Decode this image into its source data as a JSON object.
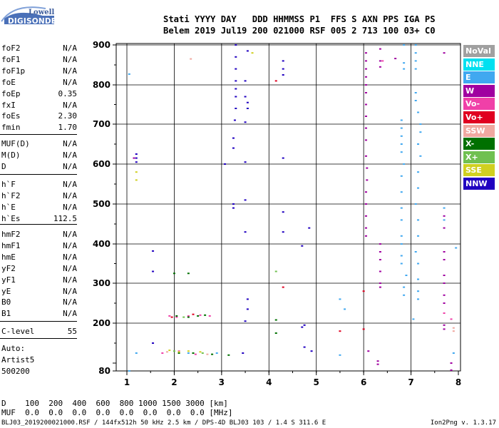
{
  "logo": {
    "line1": "Lowell",
    "line2": "DIGISONDE"
  },
  "header": {
    "row1": "Stati YYYY DAY   DDD HHMMSS P1  FFS S AXN PPS IGA PS",
    "row2": "Belem 2019 Jul19 200 021000 RSF 005 2 713 100 03+ C0"
  },
  "params": {
    "group1": [
      {
        "name": "foF2",
        "value": "N/A"
      },
      {
        "name": "foF1",
        "value": "N/A"
      },
      {
        "name": "foF1p",
        "value": "N/A"
      },
      {
        "name": "foE",
        "value": "N/A"
      },
      {
        "name": "foEp",
        "value": "0.35"
      },
      {
        "name": "fxI",
        "value": "N/A"
      },
      {
        "name": "foEs",
        "value": "2.30"
      },
      {
        "name": "fmin",
        "value": "1.70"
      }
    ],
    "group2": [
      {
        "name": "MUF(D)",
        "value": "N/A"
      },
      {
        "name": "M(D)",
        "value": "N/A"
      },
      {
        "name": "D",
        "value": "N/A"
      }
    ],
    "group3": [
      {
        "name": "h`F",
        "value": "N/A"
      },
      {
        "name": "h`F2",
        "value": "N/A"
      },
      {
        "name": "h`E",
        "value": "N/A"
      },
      {
        "name": "h`Es",
        "value": "112.5"
      }
    ],
    "group4": [
      {
        "name": "hmF2",
        "value": "N/A"
      },
      {
        "name": "hmF1",
        "value": "N/A"
      },
      {
        "name": "hmE",
        "value": "N/A"
      },
      {
        "name": "yF2",
        "value": "N/A"
      },
      {
        "name": "yF1",
        "value": "N/A"
      },
      {
        "name": "yE",
        "value": "N/A"
      },
      {
        "name": "B0",
        "value": "N/A"
      },
      {
        "name": "B1",
        "value": "N/A"
      }
    ],
    "clevel": {
      "name": "C-level",
      "value": "55"
    },
    "auto": [
      "Auto:",
      "Artist5",
      "500200"
    ]
  },
  "legend": [
    {
      "label": "NoVal",
      "color": "#a0a0a0"
    },
    {
      "label": "NNE",
      "color": "#00e0f0"
    },
    {
      "label": "E",
      "color": "#40a8f0"
    },
    {
      "label": "W",
      "color": "#a000a0"
    },
    {
      "label": "Vo-",
      "color": "#f040a8"
    },
    {
      "label": "Vo+",
      "color": "#e00020"
    },
    {
      "label": "SSW",
      "color": "#f0a8a0"
    },
    {
      "label": "X-",
      "color": "#007000"
    },
    {
      "label": "X+",
      "color": "#70c050"
    },
    {
      "label": "SSE",
      "color": "#d0d020"
    },
    {
      "label": "NNW",
      "color": "#2000c0"
    }
  ],
  "bottom": {
    "d_row": "D    100  200  400  600  800 1000 1500 3000 [km]",
    "muf_row": "MUF  0.0  0.0  0.0  0.0  0.0  0.0  0.0  0.0 [MHz]"
  },
  "footer": {
    "left": "BLJ03_2019200021000.RSF / 144fx512h 50 kHz 2.5 km / DPS-4D BLJ03 103 / 1.4 S 311.6 E",
    "right": "Ion2Png v. 1.3.17"
  },
  "chart_data": {
    "type": "scatter",
    "x_ticks": [
      1,
      2,
      3,
      4,
      5,
      6,
      7,
      8
    ],
    "y_ticks": [
      80,
      100,
      200,
      300,
      400,
      500,
      600,
      700,
      800,
      900
    ],
    "xlim": [
      0.85,
      8.0
    ],
    "ylim": [
      80,
      905
    ],
    "y_scale": "custom-echo-height",
    "grid": true,
    "clusters": [
      {
        "series": "NNW",
        "color": "#2000c0",
        "points": [
          [
            3.3,
            900
          ],
          [
            3.3,
            870
          ],
          [
            3.3,
            840
          ],
          [
            3.3,
            810
          ],
          [
            3.3,
            790
          ],
          [
            3.3,
            770
          ],
          [
            3.3,
            740
          ],
          [
            3.28,
            710
          ],
          [
            3.25,
            665
          ],
          [
            3.25,
            640
          ],
          [
            3.07,
            600
          ],
          [
            3.25,
            500
          ],
          [
            3.25,
            490
          ],
          [
            3.5,
            430
          ],
          [
            3.55,
            260
          ],
          [
            3.55,
            235
          ],
          [
            3.5,
            205
          ],
          [
            3.45,
            125
          ],
          [
            3.55,
            885
          ],
          [
            3.5,
            810
          ],
          [
            3.5,
            770
          ],
          [
            3.55,
            755
          ],
          [
            3.55,
            740
          ],
          [
            3.5,
            705
          ],
          [
            3.5,
            605
          ],
          [
            3.5,
            510
          ],
          [
            4.3,
            860
          ],
          [
            4.3,
            840
          ],
          [
            4.3,
            825
          ],
          [
            4.3,
            615
          ],
          [
            4.3,
            480
          ],
          [
            4.3,
            430
          ],
          [
            4.85,
            440
          ],
          [
            4.7,
            395
          ],
          [
            4.75,
            195
          ],
          [
            4.7,
            190
          ],
          [
            4.75,
            140
          ],
          [
            4.9,
            130
          ],
          [
            1.55,
            382
          ],
          [
            1.55,
            330
          ],
          [
            1.2,
            625
          ],
          [
            1.2,
            615
          ],
          [
            1.2,
            605
          ],
          [
            1.55,
            150
          ]
        ]
      },
      {
        "series": "W",
        "color": "#a000a0",
        "points": [
          [
            6.05,
            880
          ],
          [
            6.05,
            860
          ],
          [
            6.05,
            840
          ],
          [
            6.05,
            820
          ],
          [
            6.05,
            800
          ],
          [
            6.05,
            780
          ],
          [
            6.05,
            750
          ],
          [
            6.05,
            720
          ],
          [
            6.05,
            690
          ],
          [
            6.05,
            660
          ],
          [
            6.05,
            620
          ],
          [
            6.07,
            590
          ],
          [
            6.07,
            560
          ],
          [
            6.05,
            530
          ],
          [
            6.05,
            500
          ],
          [
            6.05,
            470
          ],
          [
            6.05,
            440
          ],
          [
            6.05,
            420
          ],
          [
            6.35,
            890
          ],
          [
            6.35,
            860
          ],
          [
            6.35,
            845
          ],
          [
            6.35,
            400
          ],
          [
            6.35,
            380
          ],
          [
            6.35,
            360
          ],
          [
            6.35,
            330
          ],
          [
            6.35,
            300
          ],
          [
            6.35,
            290
          ],
          [
            6.3,
            105
          ],
          [
            6.3,
            97
          ],
          [
            7.7,
            880
          ],
          [
            7.7,
            470
          ],
          [
            7.7,
            440
          ],
          [
            7.7,
            380
          ],
          [
            7.7,
            360
          ],
          [
            7.7,
            320
          ],
          [
            7.7,
            300
          ],
          [
            7.7,
            270
          ],
          [
            7.7,
            250
          ],
          [
            7.7,
            195
          ],
          [
            7.7,
            185
          ],
          [
            7.85,
            100
          ],
          [
            7.85,
            82
          ],
          [
            1.15,
            615
          ],
          [
            6.67,
            866
          ],
          [
            6.1,
            130
          ]
        ]
      },
      {
        "series": "E",
        "color": "#40a8f0",
        "points": [
          [
            6.85,
            900
          ],
          [
            6.85,
            855
          ],
          [
            6.85,
            840
          ],
          [
            6.8,
            710
          ],
          [
            6.8,
            690
          ],
          [
            6.8,
            670
          ],
          [
            6.8,
            650
          ],
          [
            6.8,
            630
          ],
          [
            6.85,
            600
          ],
          [
            6.8,
            570
          ],
          [
            6.8,
            530
          ],
          [
            6.8,
            490
          ],
          [
            6.8,
            460
          ],
          [
            6.8,
            420
          ],
          [
            6.8,
            400
          ],
          [
            6.8,
            370
          ],
          [
            6.8,
            350
          ],
          [
            6.9,
            320
          ],
          [
            6.85,
            290
          ],
          [
            6.85,
            270
          ],
          [
            7.1,
            900
          ],
          [
            7.1,
            880
          ],
          [
            7.1,
            860
          ],
          [
            7.1,
            840
          ],
          [
            7.1,
            780
          ],
          [
            7.1,
            760
          ],
          [
            7.15,
            730
          ],
          [
            7.2,
            700
          ],
          [
            7.2,
            680
          ],
          [
            7.15,
            650
          ],
          [
            7.2,
            620
          ],
          [
            7.15,
            580
          ],
          [
            7.15,
            540
          ],
          [
            7.1,
            500
          ],
          [
            7.15,
            460
          ],
          [
            7.15,
            420
          ],
          [
            7.1,
            380
          ],
          [
            7.15,
            350
          ],
          [
            7.15,
            310
          ],
          [
            7.15,
            280
          ],
          [
            7.15,
            260
          ],
          [
            7.05,
            210
          ],
          [
            7.7,
            490
          ],
          [
            7.7,
            460
          ],
          [
            7.95,
            390
          ],
          [
            7.9,
            125
          ],
          [
            5.6,
            235
          ],
          [
            5.5,
            260
          ],
          [
            5.5,
            120
          ],
          [
            1.05,
            827
          ],
          [
            1.05,
            80
          ],
          [
            1.2,
            125
          ],
          [
            2.9,
            125
          ],
          [
            2.3,
            125
          ]
        ]
      },
      {
        "series": "Vo-",
        "color": "#f040a8",
        "points": [
          [
            1.9,
            218
          ],
          [
            2.05,
            215
          ],
          [
            2.3,
            218
          ],
          [
            2.55,
            220
          ],
          [
            2.75,
            218
          ],
          [
            6.4,
            860
          ],
          [
            1.75,
            125
          ],
          [
            2.1,
            130
          ],
          [
            2.45,
            122
          ],
          [
            7.7,
            225
          ],
          [
            7.85,
            210
          ]
        ]
      },
      {
        "series": "Vo+",
        "color": "#e00020",
        "points": [
          [
            4.15,
            810
          ],
          [
            4.3,
            290
          ],
          [
            6.0,
            280
          ],
          [
            5.5,
            180
          ],
          [
            1.95,
            215
          ],
          [
            2.4,
            222
          ],
          [
            6.0,
            185
          ]
        ]
      },
      {
        "series": "SSW",
        "color": "#f0a8a0",
        "points": [
          [
            2.35,
            865
          ],
          [
            7.9,
            188
          ],
          [
            7.9,
            180
          ],
          [
            1.85,
            128
          ],
          [
            2.7,
            122
          ]
        ]
      },
      {
        "series": "X-",
        "color": "#007000",
        "points": [
          [
            2.0,
            325
          ],
          [
            2.3,
            325
          ],
          [
            2.05,
            218
          ],
          [
            2.3,
            215
          ],
          [
            2.5,
            218
          ],
          [
            2.65,
            220
          ],
          [
            4.15,
            208
          ],
          [
            4.15,
            175
          ],
          [
            2.1,
            125
          ],
          [
            2.4,
            125
          ],
          [
            2.8,
            122
          ],
          [
            3.15,
            120
          ]
        ]
      },
      {
        "series": "X+",
        "color": "#70c050",
        "points": [
          [
            4.15,
            330
          ],
          [
            2.2,
            215
          ],
          [
            2.0,
            130
          ],
          [
            2.6,
            125
          ]
        ]
      },
      {
        "series": "SSE",
        "color": "#d0d020",
        "points": [
          [
            3.65,
            880
          ],
          [
            1.2,
            580
          ],
          [
            1.2,
            560
          ],
          [
            1.9,
            132
          ],
          [
            2.1,
            128
          ],
          [
            2.3,
            130
          ],
          [
            2.55,
            128
          ]
        ]
      }
    ]
  }
}
